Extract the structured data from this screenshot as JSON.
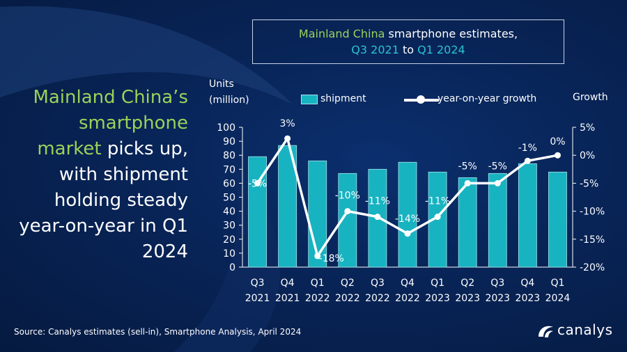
{
  "headline": {
    "part1": "Mainland China’s smartphone market",
    "part2": " picks up, with shipment holding steady year-on-year in Q1 2024"
  },
  "title_box": {
    "line1_green": "Mainland China",
    "line1_rest": " smartphone estimates,",
    "line2_teal_a": "Q3 2021",
    "line2_mid": " to ",
    "line2_teal_b": "Q1 2024"
  },
  "colors": {
    "bar": "#17b3c1",
    "bar_border": "#a8e6ec",
    "line": "#ffffff",
    "accent_green": "#9ad25a",
    "accent_teal": "#2ec1d0"
  },
  "chart_data": {
    "type": "bar",
    "categories": [
      "Q3 2021",
      "Q4 2021",
      "Q1 2022",
      "Q2 2022",
      "Q3 2022",
      "Q4 2022",
      "Q1 2023",
      "Q2 2023",
      "Q3 2023",
      "Q4 2023",
      "Q1 2024"
    ],
    "category_lines": [
      [
        "Q3",
        "2021"
      ],
      [
        "Q4",
        "2021"
      ],
      [
        "Q1",
        "2022"
      ],
      [
        "Q2",
        "2022"
      ],
      [
        "Q3",
        "2022"
      ],
      [
        "Q4",
        "2022"
      ],
      [
        "Q1",
        "2023"
      ],
      [
        "Q2",
        "2023"
      ],
      [
        "Q3",
        "2023"
      ],
      [
        "Q4",
        "2023"
      ],
      [
        "Q1",
        "2024"
      ]
    ],
    "series": [
      {
        "name": "shipment",
        "type": "bar",
        "axis": "left",
        "values": [
          79,
          87,
          76,
          67,
          70,
          75,
          68,
          64,
          67,
          74,
          68
        ]
      },
      {
        "name": "year-on-year growth",
        "type": "line",
        "axis": "right",
        "values": [
          -5,
          3,
          -18,
          -10,
          -11,
          -14,
          -11,
          -5,
          -5,
          -1,
          0
        ]
      }
    ],
    "growth_labels": [
      "-5%",
      "3%",
      "-18%",
      "-10%",
      "-11%",
      "-14%",
      "-11%",
      "-5%",
      "-5%",
      "-1%",
      "0%"
    ],
    "ylabel_left_line1": "Units",
    "ylabel_left_line2": "(million)",
    "ylabel_right": "Growth",
    "ylim_left": [
      0,
      100
    ],
    "yticks_left": [
      "0",
      "10",
      "20",
      "30",
      "40",
      "50",
      "60",
      "70",
      "80",
      "90",
      "100"
    ],
    "ylim_right": [
      -20,
      5
    ],
    "yticks_right": [
      "-20%",
      "-15%",
      "-10%",
      "-5%",
      "0%",
      "5%"
    ],
    "legend_placement": "top",
    "grid": false
  },
  "source": "Source: Canalys estimates (sell-in), Smartphone Analysis, April 2024",
  "logo": {
    "text": "canalys"
  }
}
